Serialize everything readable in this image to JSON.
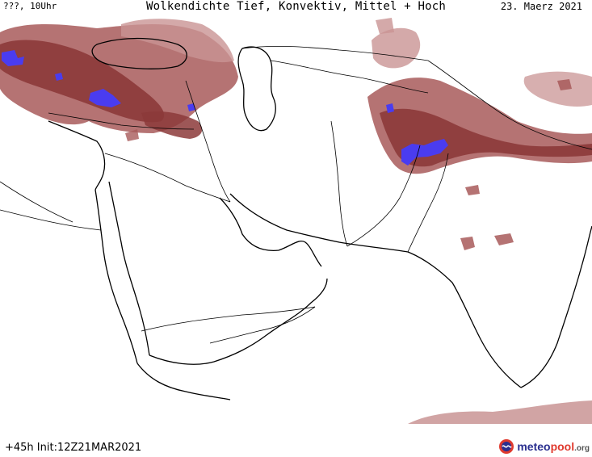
{
  "header": {
    "left": "???, 10Uhr",
    "title": "Wolkendichte  Tief, Konvektiv, Mittel + Hoch",
    "date": "23. Maerz 2021"
  },
  "footer": {
    "run": "+45h Init:12Z21MAR2021"
  },
  "logo": {
    "part1": "meteo",
    "part2": "pool",
    "suffix": ".org",
    "icon": "meteopool-logo-icon"
  },
  "colors": {
    "cloud_dense": "#8c3a3a",
    "cloud_medium": "#a85a5a",
    "cloud_light": "#c99494",
    "convective": "#4a3cf0",
    "border": "#000000"
  }
}
